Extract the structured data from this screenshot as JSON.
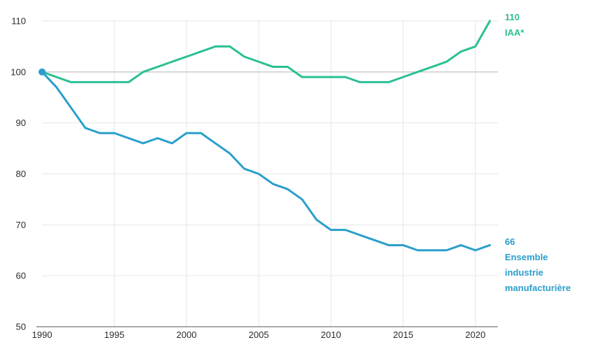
{
  "chart_data": {
    "type": "line",
    "title": "",
    "xlabel": "",
    "ylabel": "",
    "xlim": [
      1990,
      2021
    ],
    "ylim": [
      50,
      110
    ],
    "grid": true,
    "x_ticks": [
      1990,
      1995,
      2000,
      2005,
      2010,
      2015,
      2020
    ],
    "y_ticks": [
      50,
      60,
      70,
      80,
      90,
      100,
      110
    ],
    "reference_line": 100,
    "x": [
      1990,
      1991,
      1992,
      1993,
      1994,
      1995,
      1996,
      1997,
      1998,
      1999,
      2000,
      2001,
      2002,
      2003,
      2004,
      2005,
      2006,
      2007,
      2008,
      2009,
      2010,
      2011,
      2012,
      2013,
      2014,
      2015,
      2016,
      2017,
      2018,
      2019,
      2020,
      2021
    ],
    "series": [
      {
        "name": "IAA*",
        "color": "#2bbf95",
        "end_value": "110",
        "label_lines": [
          "IAA*"
        ],
        "values": [
          100,
          99,
          98,
          98,
          98,
          98,
          98,
          100,
          101,
          102,
          103,
          104,
          105,
          105,
          103,
          102,
          101,
          101,
          99,
          99,
          99,
          99,
          98,
          98,
          98,
          99,
          100,
          101,
          102,
          104,
          105,
          110
        ]
      },
      {
        "name": "Ensemble industrie manufacturière",
        "color": "#2a9fcc",
        "end_value": "66",
        "label_lines": [
          "Ensemble",
          "industrie",
          "manufacturière"
        ],
        "values": [
          100,
          97,
          93,
          89,
          88,
          88,
          87,
          86,
          87,
          86,
          88,
          88,
          86,
          84,
          81,
          80,
          78,
          77,
          75,
          71,
          69,
          69,
          68,
          67,
          66,
          66,
          65,
          65,
          65,
          66,
          65,
          66
        ]
      }
    ],
    "start_marker": {
      "x": 1990,
      "y": 100,
      "color": "#2a9fcc"
    }
  },
  "colors": {
    "grid": "#e6e6e6",
    "reference": "#b3b3b3",
    "axis": "#555555",
    "tick_text": "#2b2b2b"
  }
}
